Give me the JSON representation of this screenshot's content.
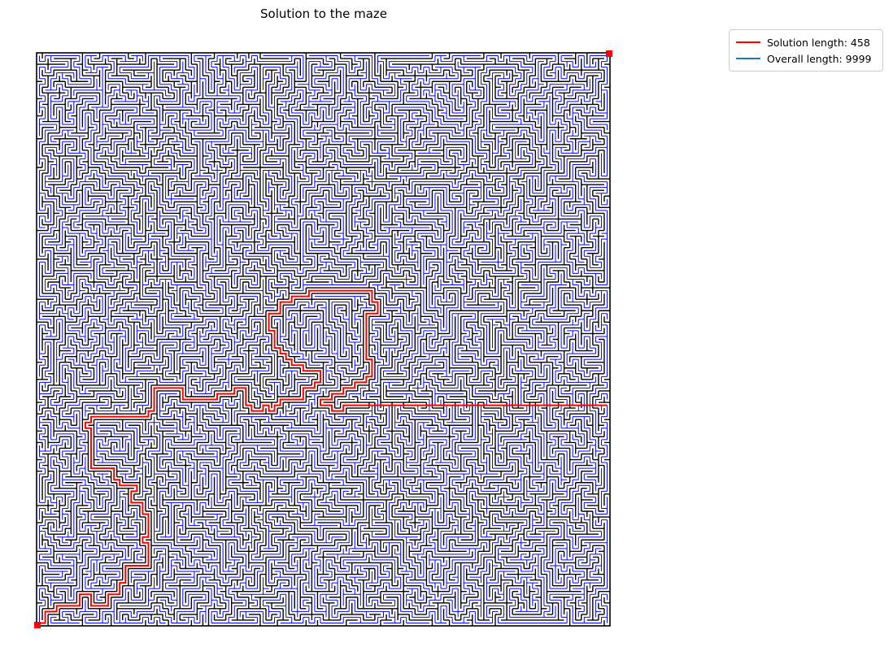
{
  "title": "Solution to the maze",
  "legend": {
    "solution_label": "Solution length: 458",
    "overall_label": "Overall length: 9999",
    "solution_color": "#ff0000",
    "overall_color": "#1f77b4"
  },
  "colors": {
    "walls": "#000000",
    "maze_paths": "#0000ff",
    "solution_path": "#ff0000",
    "markers": "#ff0000"
  },
  "maze": {
    "rows": 100,
    "cols": 100,
    "start": "bottom-left",
    "end": "top-right",
    "solution_cells": [
      [
        0,
        99
      ],
      [
        1,
        99
      ],
      [
        1,
        98
      ],
      [
        1,
        97
      ],
      [
        2,
        97
      ],
      [
        3,
        97
      ],
      [
        3,
        96
      ],
      [
        4,
        96
      ],
      [
        5,
        96
      ],
      [
        6,
        96
      ],
      [
        7,
        96
      ],
      [
        7,
        95
      ],
      [
        7,
        94
      ],
      [
        8,
        94
      ],
      [
        9,
        94
      ],
      [
        9,
        95
      ],
      [
        9,
        96
      ],
      [
        10,
        96
      ],
      [
        11,
        96
      ],
      [
        12,
        96
      ],
      [
        12,
        95
      ],
      [
        12,
        94
      ],
      [
        13,
        94
      ],
      [
        14,
        94
      ],
      [
        14,
        93
      ],
      [
        14,
        92
      ],
      [
        15,
        92
      ],
      [
        15,
        91
      ],
      [
        15,
        90
      ],
      [
        15,
        89
      ],
      [
        16,
        89
      ],
      [
        17,
        89
      ],
      [
        18,
        89
      ],
      [
        19,
        89
      ],
      [
        19,
        88
      ],
      [
        19,
        87
      ],
      [
        19,
        86
      ],
      [
        19,
        85
      ],
      [
        18,
        85
      ],
      [
        18,
        84
      ],
      [
        19,
        84
      ],
      [
        19,
        83
      ],
      [
        19,
        82
      ],
      [
        19,
        81
      ],
      [
        19,
        80
      ],
      [
        18,
        80
      ],
      [
        18,
        79
      ],
      [
        18,
        78
      ],
      [
        17,
        78
      ],
      [
        16,
        78
      ],
      [
        16,
        77
      ],
      [
        16,
        76
      ],
      [
        17,
        76
      ],
      [
        17,
        75
      ],
      [
        16,
        75
      ],
      [
        15,
        75
      ],
      [
        14,
        75
      ],
      [
        14,
        74
      ],
      [
        13,
        74
      ],
      [
        13,
        73
      ],
      [
        13,
        72
      ],
      [
        12,
        72
      ],
      [
        11,
        72
      ],
      [
        10,
        72
      ],
      [
        9,
        72
      ],
      [
        9,
        71
      ],
      [
        9,
        70
      ],
      [
        9,
        69
      ],
      [
        9,
        68
      ],
      [
        9,
        67
      ],
      [
        9,
        66
      ],
      [
        9,
        65
      ],
      [
        8,
        65
      ],
      [
        8,
        64
      ],
      [
        9,
        64
      ],
      [
        9,
        63
      ],
      [
        10,
        63
      ],
      [
        11,
        63
      ],
      [
        12,
        63
      ],
      [
        13,
        63
      ],
      [
        14,
        63
      ],
      [
        15,
        63
      ],
      [
        16,
        63
      ],
      [
        17,
        63
      ],
      [
        18,
        63
      ],
      [
        19,
        63
      ],
      [
        19,
        62
      ],
      [
        20,
        62
      ],
      [
        20,
        61
      ],
      [
        20,
        60
      ],
      [
        20,
        59
      ],
      [
        20,
        58
      ],
      [
        21,
        58
      ],
      [
        22,
        58
      ],
      [
        23,
        58
      ],
      [
        24,
        58
      ],
      [
        25,
        58
      ],
      [
        25,
        59
      ],
      [
        25,
        60
      ],
      [
        26,
        60
      ],
      [
        27,
        60
      ],
      [
        28,
        60
      ],
      [
        29,
        60
      ],
      [
        30,
        60
      ],
      [
        31,
        60
      ],
      [
        31,
        59
      ],
      [
        32,
        59
      ],
      [
        33,
        59
      ],
      [
        34,
        59
      ],
      [
        34,
        58
      ],
      [
        35,
        58
      ],
      [
        36,
        58
      ],
      [
        36,
        59
      ],
      [
        36,
        60
      ],
      [
        36,
        61
      ],
      [
        37,
        61
      ],
      [
        37,
        62
      ],
      [
        38,
        62
      ],
      [
        39,
        62
      ],
      [
        39,
        61
      ],
      [
        40,
        61
      ],
      [
        40,
        62
      ],
      [
        41,
        62
      ],
      [
        41,
        61
      ],
      [
        42,
        61
      ],
      [
        42,
        60
      ],
      [
        43,
        60
      ],
      [
        44,
        60
      ],
      [
        45,
        60
      ],
      [
        46,
        60
      ],
      [
        46,
        59
      ],
      [
        46,
        58
      ],
      [
        47,
        58
      ],
      [
        48,
        58
      ],
      [
        48,
        57
      ],
      [
        49,
        57
      ],
      [
        49,
        56
      ],
      [
        49,
        55
      ],
      [
        48,
        55
      ],
      [
        47,
        55
      ],
      [
        46,
        55
      ],
      [
        46,
        54
      ],
      [
        45,
        54
      ],
      [
        44,
        54
      ],
      [
        44,
        53
      ],
      [
        43,
        53
      ],
      [
        43,
        52
      ],
      [
        42,
        52
      ],
      [
        42,
        51
      ],
      [
        41,
        51
      ],
      [
        41,
        50
      ],
      [
        41,
        49
      ],
      [
        41,
        48
      ],
      [
        40,
        48
      ],
      [
        40,
        47
      ],
      [
        40,
        46
      ],
      [
        40,
        45
      ],
      [
        41,
        45
      ],
      [
        42,
        45
      ],
      [
        42,
        44
      ],
      [
        42,
        43
      ],
      [
        43,
        43
      ],
      [
        44,
        43
      ],
      [
        44,
        42
      ],
      [
        45,
        42
      ],
      [
        46,
        42
      ],
      [
        47,
        42
      ],
      [
        47,
        41
      ],
      [
        48,
        41
      ],
      [
        49,
        41
      ],
      [
        50,
        41
      ],
      [
        51,
        41
      ],
      [
        52,
        41
      ],
      [
        53,
        41
      ],
      [
        54,
        41
      ],
      [
        55,
        41
      ],
      [
        56,
        41
      ],
      [
        57,
        41
      ],
      [
        58,
        41
      ],
      [
        58,
        42
      ],
      [
        58,
        43
      ],
      [
        59,
        43
      ],
      [
        59,
        44
      ],
      [
        59,
        45
      ],
      [
        58,
        45
      ],
      [
        57,
        45
      ],
      [
        57,
        46
      ],
      [
        57,
        47
      ],
      [
        57,
        48
      ],
      [
        57,
        49
      ],
      [
        57,
        50
      ],
      [
        57,
        51
      ],
      [
        57,
        52
      ],
      [
        57,
        53
      ],
      [
        58,
        53
      ],
      [
        58,
        54
      ],
      [
        58,
        55
      ],
      [
        58,
        56
      ],
      [
        57,
        56
      ],
      [
        57,
        57
      ],
      [
        56,
        57
      ],
      [
        55,
        57
      ],
      [
        55,
        58
      ],
      [
        54,
        58
      ],
      [
        53,
        58
      ],
      [
        53,
        59
      ],
      [
        52,
        59
      ],
      [
        51,
        59
      ],
      [
        51,
        60
      ],
      [
        50,
        60
      ],
      [
        49,
        60
      ],
      [
        49,
        61
      ],
      [
        50,
        61
      ],
      [
        51,
        61
      ],
      [
        51,
        62
      ],
      [
        52,
        62
      ],
      [
        53,
        62
      ],
      [
        53,
        61
      ],
      [
        54,
        61
      ],
      [
        55,
        61
      ],
      [
        56,
        61
      ],
      [
        57,
        61
      ]
    ]
  }
}
